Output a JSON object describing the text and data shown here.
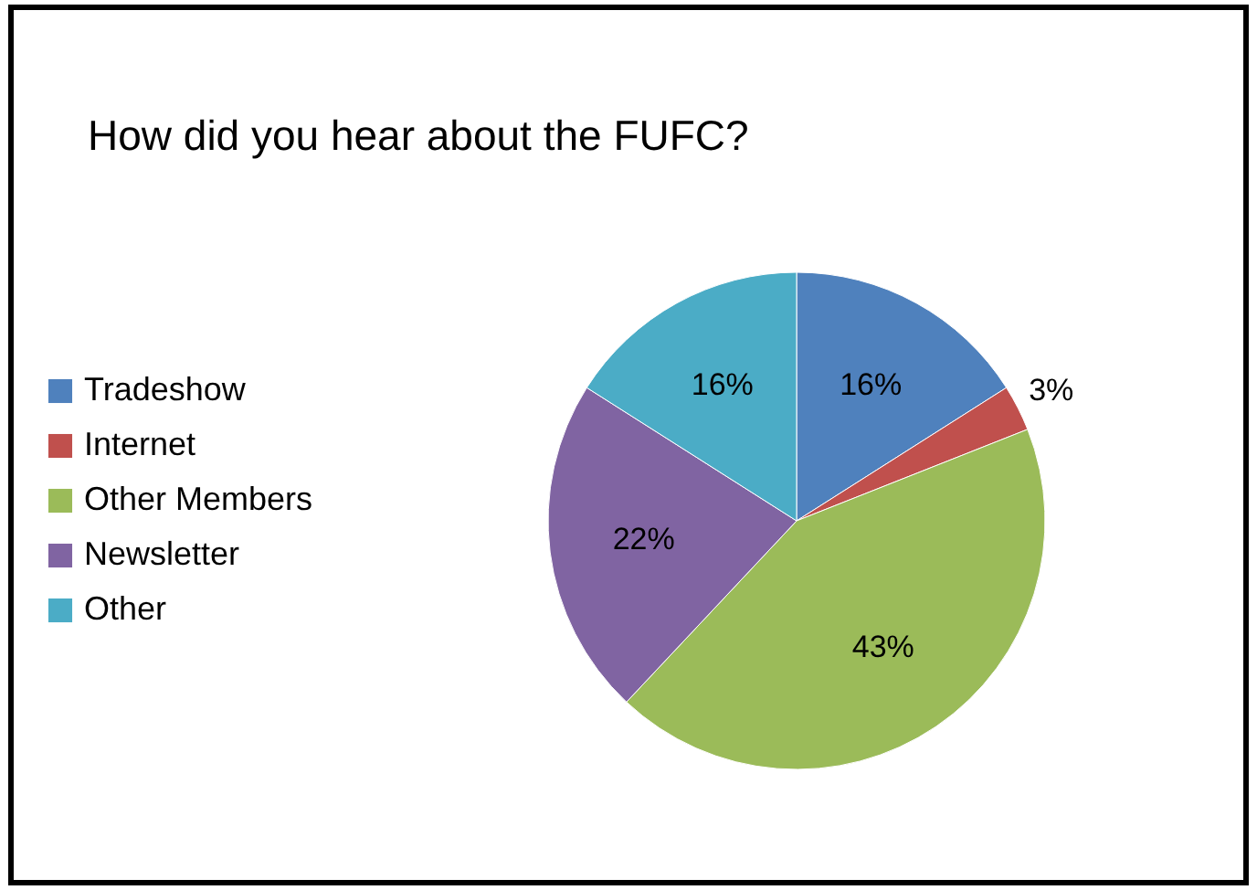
{
  "chart_data": {
    "type": "pie",
    "title": "How did you hear about the FUFC?",
    "categories": [
      "Tradeshow",
      "Internet",
      "Other Members",
      "Newsletter",
      "Other"
    ],
    "values": [
      16,
      3,
      43,
      22,
      16
    ],
    "value_labels": [
      "16%",
      "3%",
      "43%",
      "22%",
      "16%"
    ],
    "colors": [
      "#4f81bd",
      "#c0504d",
      "#9bbb59",
      "#8064a2",
      "#4bacc6"
    ],
    "legend": "left"
  }
}
